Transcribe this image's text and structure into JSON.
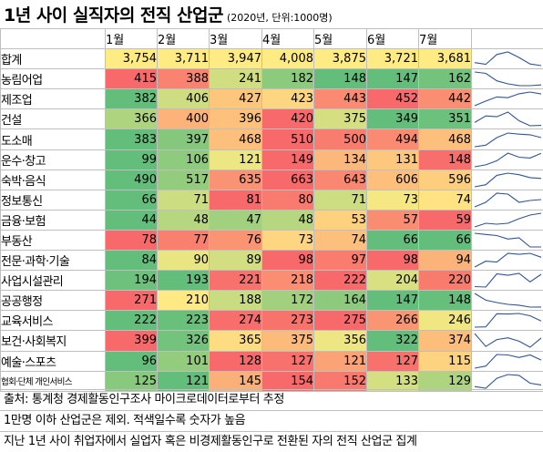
{
  "title": "1년 사이 실직자의 전직 산업군",
  "subtitle": "(2020년, 단위:1000명)",
  "chart_data": {
    "type": "heatmap",
    "months": [
      "1월",
      "2월",
      "3월",
      "4월",
      "5월",
      "6월",
      "7월"
    ],
    "total": {
      "label": "합계",
      "values": [
        3754,
        3711,
        3947,
        4008,
        3875,
        3721,
        3681
      ]
    },
    "rows": [
      {
        "label": "농림어업",
        "values": [
          415,
          388,
          241,
          182,
          148,
          147,
          162
        ]
      },
      {
        "label": "제조업",
        "values": [
          382,
          406,
          427,
          423,
          443,
          452,
          442
        ]
      },
      {
        "label": "건설",
        "values": [
          366,
          400,
          396,
          420,
          375,
          349,
          351
        ]
      },
      {
        "label": "도소매",
        "values": [
          383,
          397,
          468,
          510,
          500,
          494,
          468
        ]
      },
      {
        "label": "운수·창고",
        "values": [
          99,
          106,
          121,
          149,
          134,
          131,
          148
        ]
      },
      {
        "label": "숙박·음식",
        "values": [
          490,
          517,
          635,
          663,
          643,
          606,
          596
        ]
      },
      {
        "label": "정보통신",
        "values": [
          66,
          71,
          81,
          80,
          71,
          73,
          74
        ]
      },
      {
        "label": "금융·보험",
        "values": [
          44,
          48,
          47,
          48,
          53,
          57,
          59
        ]
      },
      {
        "label": "부동산",
        "values": [
          78,
          77,
          76,
          73,
          74,
          66,
          66
        ]
      },
      {
        "label": "전문·과학·기술",
        "values": [
          84,
          90,
          89,
          98,
          97,
          98,
          94
        ]
      },
      {
        "label": "사업시설관리",
        "values": [
          194,
          193,
          221,
          218,
          222,
          204,
          220
        ]
      },
      {
        "label": "공공행정",
        "values": [
          271,
          210,
          188,
          172,
          164,
          147,
          148
        ]
      },
      {
        "label": "교육서비스",
        "values": [
          222,
          223,
          274,
          273,
          275,
          266,
          246
        ]
      },
      {
        "label": "보건·사회복지",
        "values": [
          399,
          326,
          365,
          375,
          356,
          322,
          374
        ]
      },
      {
        "label": "예술·스포츠",
        "values": [
          96,
          101,
          128,
          127,
          121,
          127,
          115
        ]
      },
      {
        "label": "협회·단체 개인서비스",
        "values": [
          125,
          121,
          145,
          154,
          152,
          133,
          129
        ]
      }
    ],
    "color_scale": {
      "low": "#63be7b",
      "mid": "#ffeb84",
      "high": "#f8696b"
    },
    "sparkline_color": "#2f5496"
  },
  "notes": [
    "출처: 통계청 경제활동인구조사 마이크로데이터로부터 추정",
    "1만명 이하 산업군은 제외. 적색일수록 숫자가 높음",
    "지난 1년 사이 취업자에서 실업자 혹은 비경제활동인구로 전환된 자의 전직 산업군 집계"
  ]
}
